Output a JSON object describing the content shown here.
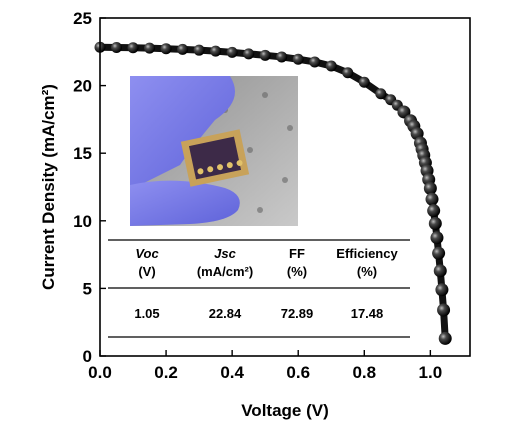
{
  "chart_data": {
    "type": "scatter",
    "title": "",
    "xlabel": "Voltage (V)",
    "ylabel": "Current Density (mA/cm²)",
    "xlim": [
      0.0,
      1.12
    ],
    "ylim": [
      0,
      25
    ],
    "x_ticks": [
      "0.0",
      "0.2",
      "0.4",
      "0.6",
      "0.8",
      "1.0"
    ],
    "y_ticks": [
      "0",
      "5",
      "10",
      "15",
      "20",
      "25"
    ],
    "grid": false,
    "legend": "none",
    "series": [
      {
        "marker": "black-sphere",
        "x": [
          0.0,
          0.05,
          0.1,
          0.15,
          0.2,
          0.25,
          0.3,
          0.35,
          0.4,
          0.45,
          0.5,
          0.55,
          0.6,
          0.65,
          0.7,
          0.75,
          0.8,
          0.85,
          0.88,
          0.9,
          0.92,
          0.94,
          0.95,
          0.96,
          0.97,
          0.975,
          0.98,
          0.985,
          0.99,
          0.995,
          1.0,
          1.005,
          1.01,
          1.015,
          1.02,
          1.025,
          1.03,
          1.035,
          1.04,
          1.045
        ],
        "y": [
          22.84,
          22.82,
          22.8,
          22.77,
          22.73,
          22.68,
          22.62,
          22.55,
          22.46,
          22.35,
          22.24,
          22.12,
          21.95,
          21.75,
          21.45,
          20.95,
          20.25,
          19.4,
          18.95,
          18.55,
          18.05,
          17.4,
          17.0,
          16.45,
          15.75,
          15.3,
          14.85,
          14.3,
          13.7,
          13.05,
          12.4,
          11.6,
          10.75,
          9.8,
          8.75,
          7.6,
          6.3,
          4.9,
          3.4,
          1.3
        ]
      }
    ],
    "inset_image": "photo of a perovskite solar cell device held between gloved fingers",
    "table": {
      "headers": [
        {
          "main": "Voc",
          "unit": "(V)"
        },
        {
          "main": "Jsc",
          "unit": "(mA/cm²)"
        },
        {
          "main": "FF",
          "unit": "(%)"
        },
        {
          "main": "Efficiency",
          "unit": "(%)"
        }
      ],
      "values": [
        "1.05",
        "22.84",
        "72.89",
        "17.48"
      ]
    }
  }
}
